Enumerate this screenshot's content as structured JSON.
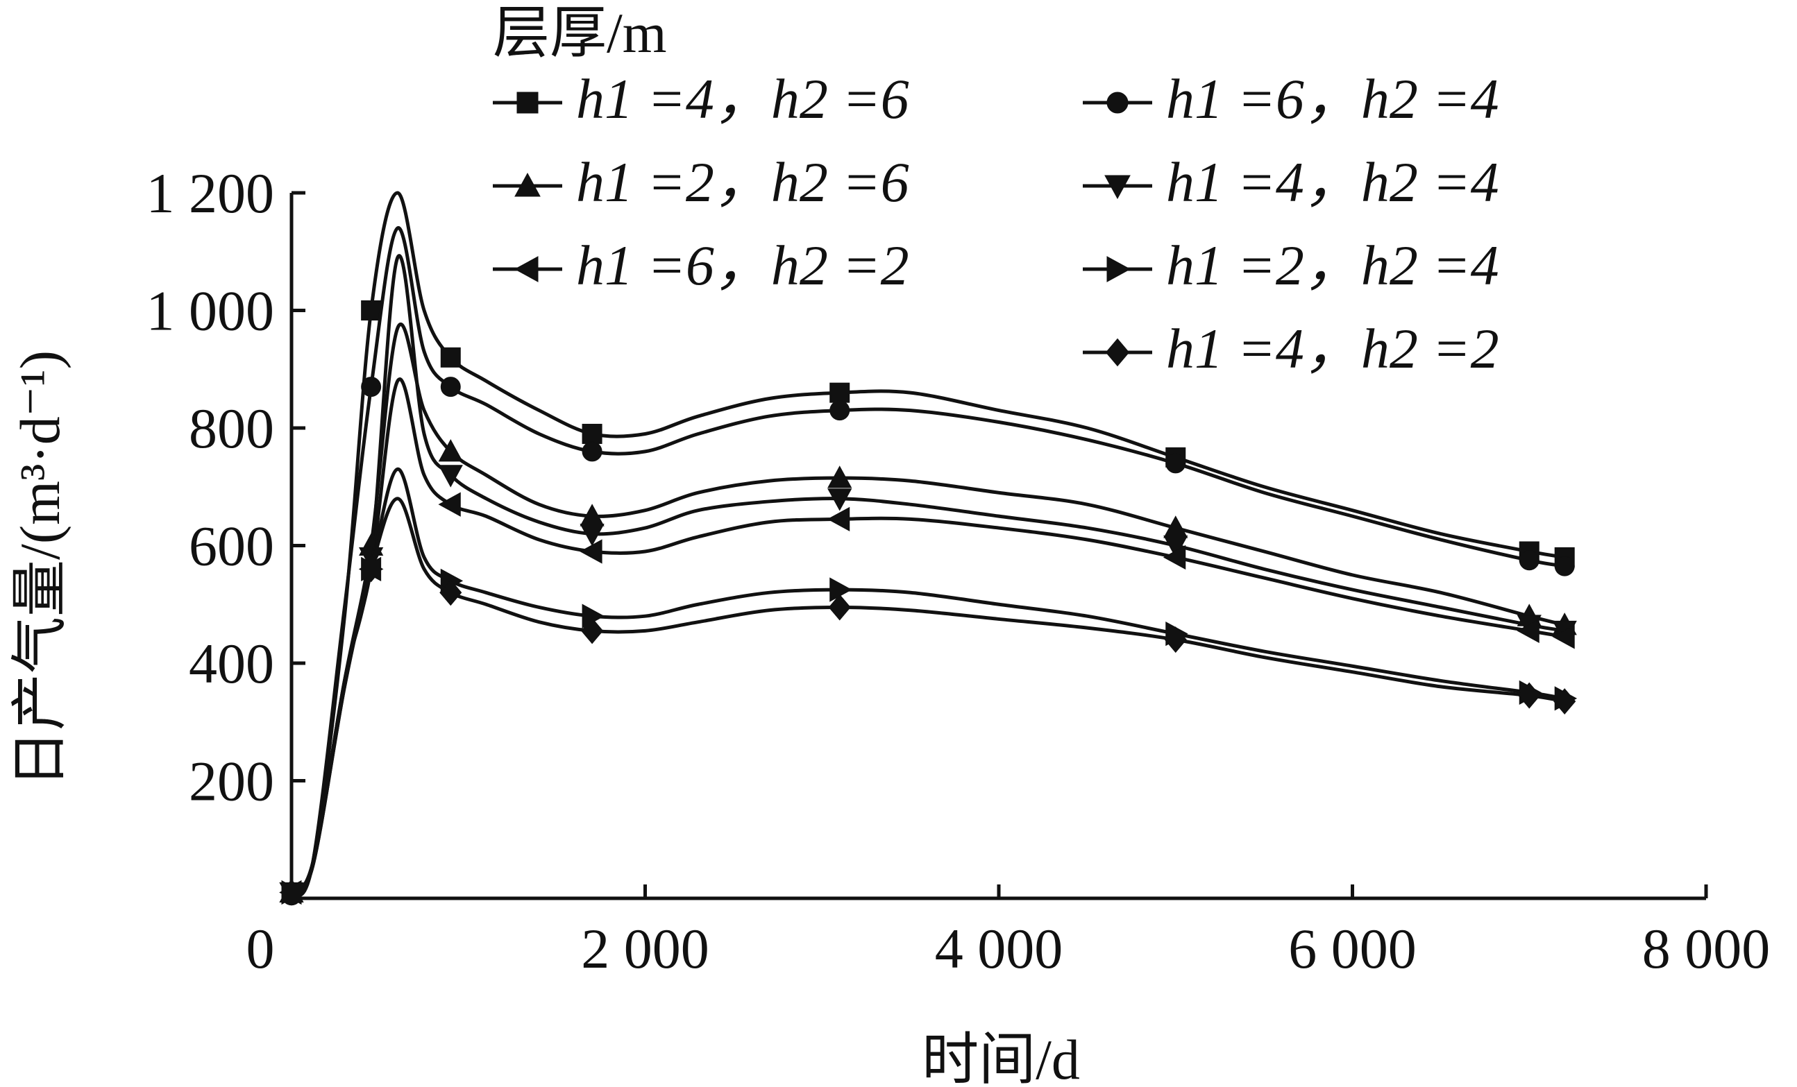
{
  "chart_data": {
    "type": "line",
    "title": "",
    "xlabel": "时间/d",
    "ylabel": "日产气量/(m³·d⁻¹)",
    "xlim": [
      0,
      8000
    ],
    "ylim": [
      0,
      1200
    ],
    "xticks": [
      0,
      2000,
      4000,
      6000,
      8000
    ],
    "xtick_labels": [
      "0",
      "2 000",
      "4 000",
      "6 000",
      "8 000"
    ],
    "yticks": [
      200,
      400,
      600,
      800,
      1000,
      1200
    ],
    "ytick_labels": [
      "200",
      "400",
      "600",
      "800",
      "1 000",
      "1 200"
    ],
    "grid": false,
    "legend_title": "层厚/m",
    "legend_position": "top-right",
    "series": [
      {
        "name": "h1=4, h2=6",
        "label": "h1 =4，h2 =6",
        "marker": "square",
        "x": [
          0,
          120,
          300,
          450,
          600,
          750,
          900,
          1100,
          1400,
          1700,
          2000,
          2300,
          2700,
          3100,
          3500,
          4000,
          4500,
          5000,
          5500,
          6000,
          6500,
          7000,
          7200
        ],
        "y": [
          10,
          60,
          480,
          1000,
          1200,
          1000,
          920,
          880,
          830,
          790,
          790,
          820,
          850,
          860,
          860,
          830,
          800,
          750,
          700,
          660,
          620,
          590,
          580
        ]
      },
      {
        "name": "h1=6, h2=4",
        "label": "h1 =6，h2 =4",
        "marker": "circle",
        "x": [
          0,
          120,
          300,
          450,
          600,
          750,
          900,
          1100,
          1400,
          1700,
          2000,
          2300,
          2700,
          3100,
          3500,
          4000,
          4500,
          5000,
          5500,
          6000,
          6500,
          7000,
          7200
        ],
        "y": [
          5,
          60,
          495,
          870,
          1140,
          930,
          870,
          840,
          790,
          760,
          760,
          790,
          820,
          830,
          830,
          810,
          780,
          740,
          690,
          650,
          610,
          575,
          565
        ]
      },
      {
        "name": "h1=2, h2=6",
        "label": "h1 =2，h2 =6",
        "marker": "triangle-up",
        "x": [
          0,
          120,
          300,
          450,
          600,
          750,
          900,
          1100,
          1400,
          1700,
          2000,
          2300,
          2700,
          3100,
          3500,
          4000,
          4500,
          5000,
          5500,
          6000,
          6500,
          7000,
          7200
        ],
        "y": [
          10,
          60,
          370,
          600,
          970,
          830,
          760,
          720,
          670,
          650,
          660,
          690,
          710,
          715,
          710,
          690,
          670,
          630,
          590,
          550,
          520,
          480,
          465
        ]
      },
      {
        "name": "h1=4, h2=4",
        "label": "h1 =4，h2 =4",
        "marker": "triangle-down",
        "x": [
          0,
          120,
          300,
          450,
          600,
          750,
          900,
          1100,
          1400,
          1700,
          2000,
          2300,
          2700,
          3100,
          3500,
          4000,
          4500,
          5000,
          5500,
          6000,
          6500,
          7000,
          7200
        ],
        "y": [
          10,
          60,
          370,
          580,
          1090,
          790,
          720,
          680,
          640,
          620,
          630,
          660,
          675,
          680,
          670,
          650,
          630,
          600,
          560,
          525,
          495,
          465,
          455
        ]
      },
      {
        "name": "h1=6, h2=2",
        "label": "h1 =6，h2 =2",
        "marker": "triangle-left",
        "x": [
          0,
          120,
          300,
          450,
          600,
          750,
          900,
          1100,
          1400,
          1700,
          2000,
          2300,
          2700,
          3100,
          3500,
          4000,
          4500,
          5000,
          5500,
          6000,
          6500,
          7000,
          7200
        ],
        "y": [
          10,
          55,
          370,
          560,
          880,
          720,
          670,
          650,
          610,
          590,
          590,
          615,
          640,
          645,
          645,
          630,
          610,
          580,
          545,
          510,
          480,
          455,
          445
        ]
      },
      {
        "name": "h1=2, h2=4",
        "label": "h1 =2，h2 =4",
        "marker": "triangle-right",
        "x": [
          0,
          120,
          300,
          450,
          600,
          750,
          900,
          1100,
          1400,
          1700,
          2000,
          2300,
          2700,
          3100,
          3500,
          4000,
          4500,
          5000,
          5500,
          6000,
          6500,
          7000,
          7200
        ],
        "y": [
          10,
          55,
          360,
          560,
          730,
          580,
          540,
          520,
          495,
          480,
          480,
          500,
          520,
          525,
          520,
          500,
          480,
          450,
          420,
          395,
          370,
          350,
          340
        ]
      },
      {
        "name": "h1=4, h2=2",
        "label": "h1 =4，h2 =2",
        "marker": "diamond",
        "x": [
          0,
          120,
          300,
          450,
          600,
          750,
          900,
          1100,
          1400,
          1700,
          2000,
          2300,
          2700,
          3100,
          3500,
          4000,
          4500,
          5000,
          5500,
          6000,
          6500,
          7000,
          7200
        ],
        "y": [
          10,
          55,
          360,
          560,
          680,
          560,
          520,
          500,
          470,
          455,
          455,
          470,
          490,
          495,
          490,
          475,
          460,
          440,
          410,
          385,
          360,
          345,
          335
        ]
      }
    ]
  }
}
